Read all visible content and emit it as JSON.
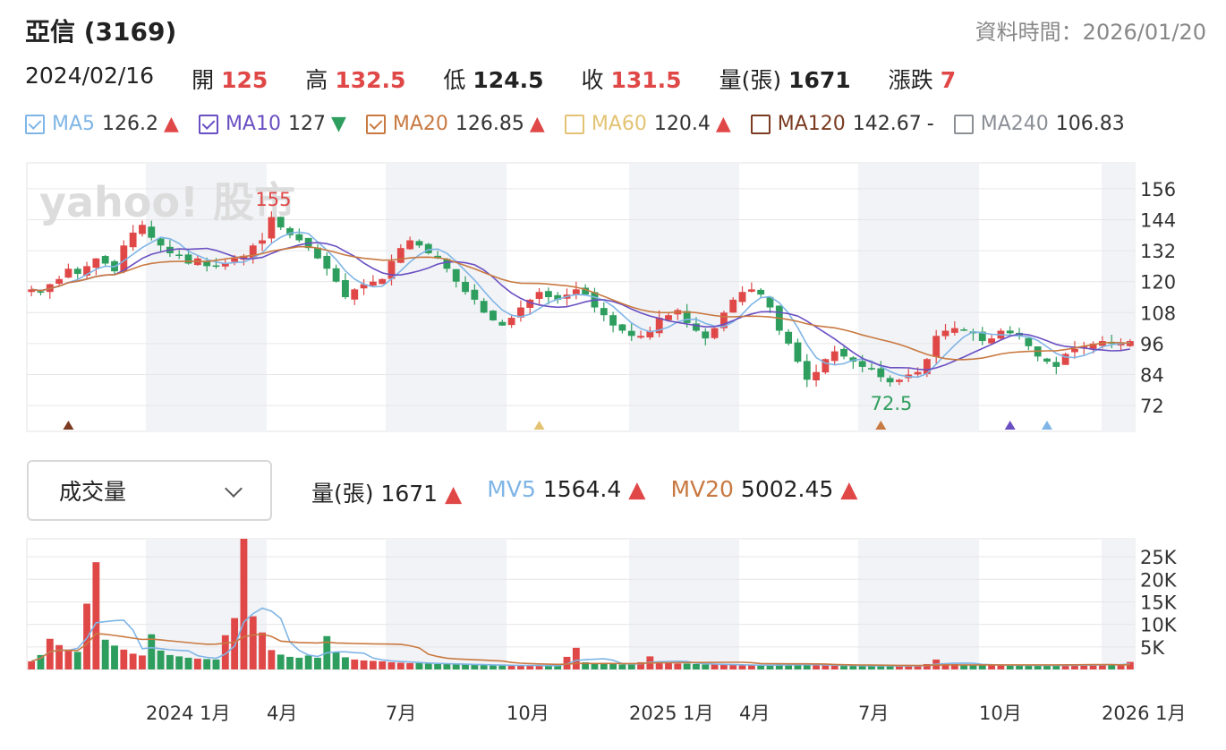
{
  "header": {
    "title": "亞信 (3169)",
    "as_of_label": "資料時間：2026/01/20"
  },
  "day_info": {
    "date": "2024/02/16",
    "open_label": "開",
    "open": "125",
    "high_label": "高",
    "high": "132.5",
    "low_label": "低",
    "low": "124.5",
    "close_label": "收",
    "close": "131.5",
    "volume_label": "量(張)",
    "volume": "1671",
    "change_label": "漲跌",
    "change": "7"
  },
  "colors": {
    "up": "#e04848",
    "down": "#2e9e5e",
    "ma5": "#7fb5e6",
    "ma10": "#6a4fc2",
    "ma20": "#c87941",
    "ma60": "#e3c373",
    "ma120": "#7a3b22",
    "ma240": "#8b8f96",
    "shade": "#f2f3f6"
  },
  "ma_legend": [
    {
      "name": "MA5",
      "value": "126.2",
      "trend": "▲",
      "checked": true,
      "color": "#7fb5e6"
    },
    {
      "name": "MA10",
      "value": "127",
      "trend": "▼",
      "checked": true,
      "color": "#6a4fc2"
    },
    {
      "name": "MA20",
      "value": "126.85",
      "trend": "▲",
      "checked": true,
      "color": "#c87941"
    },
    {
      "name": "MA60",
      "value": "120.4",
      "trend": "▲",
      "checked": false,
      "color": "#e3c373"
    },
    {
      "name": "MA120",
      "value": "142.67",
      "trend": "-",
      "checked": false,
      "color": "#7a3b22"
    },
    {
      "name": "MA240",
      "value": "106.83",
      "trend": "",
      "checked": false,
      "color": "#8b8f96"
    }
  ],
  "watermark": "yahoo! 股市",
  "volume_panel": {
    "select_label": "成交量",
    "volume_label": "量(張)",
    "volume": "1671",
    "volume_trend": "▲",
    "mv5_label": "MV5",
    "mv5": "1564.4",
    "mv5_trend": "▲",
    "mv20_label": "MV20",
    "mv20": "5002.45",
    "mv20_trend": "▲"
  },
  "chart_data": {
    "type": "candlestick",
    "price_axis": {
      "ticks": [
        "156",
        "144",
        "132",
        "120",
        "108",
        "96",
        "84",
        "72"
      ],
      "ylim": [
        62,
        166
      ]
    },
    "volume_axis": {
      "ticks": [
        "25K",
        "20K",
        "15K",
        "10K",
        "5K"
      ],
      "ylim": [
        0,
        29000
      ]
    },
    "x_labels": [
      "2024 1月",
      "4月",
      "7月",
      "10月",
      "2025 1月",
      "4月",
      "7月",
      "10月",
      "2026 1月"
    ],
    "annotations": {
      "max_label": "155",
      "min_label": "72.5"
    },
    "close": [
      117,
      116,
      119,
      121,
      125,
      123,
      126,
      129,
      127,
      124,
      134,
      139,
      142,
      137,
      134,
      131,
      130,
      127,
      129,
      126,
      126,
      127,
      129,
      130,
      134,
      136,
      145,
      141,
      138,
      136,
      133,
      129,
      125,
      120,
      114,
      117,
      119,
      120,
      121,
      128,
      133,
      136,
      134,
      131,
      129,
      125,
      120,
      116,
      113,
      108,
      105,
      103,
      106,
      110,
      113,
      116,
      114,
      113,
      115,
      117,
      115,
      110,
      107,
      103,
      101,
      99,
      99,
      101,
      106,
      107,
      109,
      104,
      101,
      98,
      102,
      108,
      113,
      116,
      117,
      115,
      110,
      101,
      96,
      89,
      82,
      85,
      90,
      93,
      91,
      89,
      87,
      86,
      83,
      81,
      82,
      84,
      85,
      90,
      99,
      101,
      102,
      101,
      100,
      97,
      98,
      101,
      100,
      99,
      95,
      91,
      89,
      87,
      92,
      94,
      95,
      96,
      97,
      96,
      96,
      97
    ],
    "volume": [
      1800,
      3200,
      6800,
      5400,
      4100,
      3900,
      14600,
      23800,
      6600,
      5300,
      4400,
      3500,
      3100,
      7800,
      4200,
      3200,
      2900,
      2600,
      2400,
      2300,
      2200,
      7600,
      11400,
      29000,
      11800,
      8200,
      4300,
      3300,
      2800,
      2600,
      3100,
      2600,
      7400,
      3800,
      2700,
      2200,
      2000,
      1900,
      1800,
      1600,
      1500,
      1400,
      1400,
      1300,
      1200,
      1200,
      1100,
      1100,
      1000,
      1000,
      900,
      900,
      900,
      900,
      850,
      800,
      800,
      800,
      2800,
      4800,
      1600,
      1300,
      1300,
      1200,
      1100,
      1100,
      1600,
      2900,
      1800,
      1500,
      1300,
      1300,
      1200,
      1100,
      1100,
      1000,
      1000,
      950,
      900,
      900,
      950,
      1200,
      1100,
      1000,
      1000,
      950,
      900,
      900,
      850,
      850,
      800,
      800,
      800,
      750,
      750,
      800,
      900,
      1200,
      2200,
      1400,
      1200,
      1100,
      1000,
      1000,
      950,
      950,
      900,
      900,
      950,
      900,
      900,
      900,
      950,
      1000,
      1000,
      1050,
      1100,
      1100,
      1150,
      1671
    ],
    "mv5": [
      1564.4
    ],
    "mv20": [
      5002.45
    ]
  }
}
